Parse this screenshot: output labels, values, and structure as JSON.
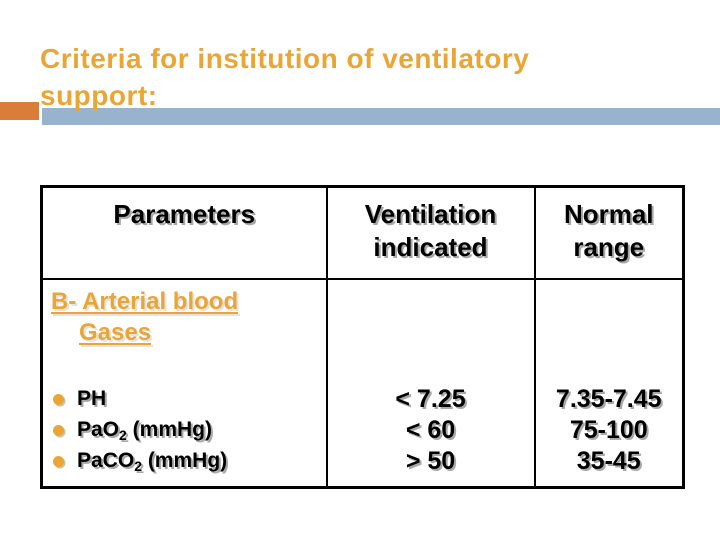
{
  "slide": {
    "title_line1": "Criteria for institution of ventilatory",
    "title_line2": "support:"
  },
  "colors": {
    "title_gold": "#E9A636",
    "accent_square_orange": "#DB7D3A",
    "accent_bar_blue": "#97B3CE",
    "table_border": "#000000",
    "body_text": "#000000"
  },
  "icons": {
    "bullet": "gold-circle-bullet"
  },
  "table": {
    "headers": {
      "parameters": "Parameters",
      "ventilation_line1": "Ventilation",
      "ventilation_line2": "indicated",
      "normal_line1": "Normal",
      "normal_line2": "range"
    },
    "section": {
      "line1": "B- Arterial blood",
      "line2": "Gases"
    },
    "rows": [
      {
        "param_pre": "PH",
        "param_sub": "",
        "param_post": "",
        "ventilation": "< 7.25",
        "normal": "7.35-7.45"
      },
      {
        "param_pre": "PaO",
        "param_sub": "2",
        "param_post": " (mmHg)",
        "ventilation": "< 60",
        "normal": "75-100"
      },
      {
        "param_pre": "PaCO",
        "param_sub": "2",
        "param_post": " (mmHg)",
        "ventilation": "> 50",
        "normal": "35-45"
      }
    ]
  }
}
